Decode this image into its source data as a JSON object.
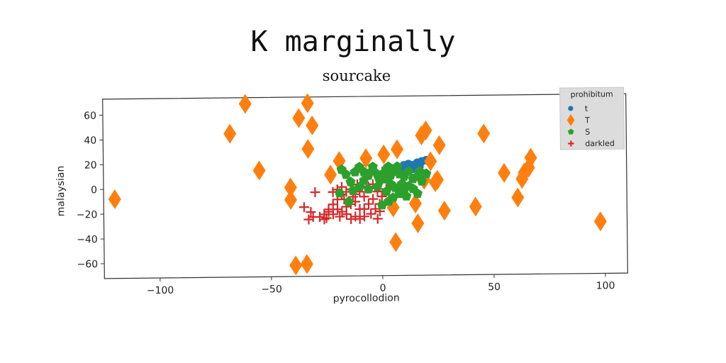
{
  "chart_data": {
    "type": "scatter",
    "title": "K marginally",
    "subtitle": "sourcake",
    "xlabel": "pyrocollodion",
    "ylabel": "malaysian",
    "xlim": [
      -125,
      110
    ],
    "ylim": [
      -72,
      73
    ],
    "xticks": [
      -100,
      -50,
      0,
      50,
      100
    ],
    "yticks": [
      -60,
      -40,
      -20,
      0,
      20,
      40,
      60
    ],
    "grid": false,
    "legend": {
      "title": "prohibitum",
      "position": "top-right"
    },
    "series": [
      {
        "name": "t",
        "marker": "circle",
        "color": "#1f77b4",
        "points": [
          [
            8,
            15
          ],
          [
            10,
            17
          ],
          [
            12,
            18
          ],
          [
            14,
            17
          ],
          [
            16,
            19
          ],
          [
            18,
            20
          ],
          [
            20,
            21
          ],
          [
            11,
            13
          ],
          [
            14,
            14
          ],
          [
            17,
            16
          ],
          [
            6,
            14
          ],
          [
            9,
            11
          ]
        ]
      },
      {
        "name": "T",
        "marker": "diamond",
        "color": "#ff7f0e",
        "points": [
          [
            -120,
            -8
          ],
          [
            -68,
            44
          ],
          [
            -61,
            68
          ],
          [
            -55,
            14
          ],
          [
            -37,
            56
          ],
          [
            -33,
            68
          ],
          [
            -31,
            50
          ],
          [
            -33,
            31
          ],
          [
            -41,
            0
          ],
          [
            -41,
            -10
          ],
          [
            -39,
            -63
          ],
          [
            -34,
            -62
          ],
          [
            -23,
            10
          ],
          [
            -19,
            21
          ],
          [
            -7,
            23
          ],
          [
            1,
            26
          ],
          [
            7,
            30
          ],
          [
            18,
            41
          ],
          [
            20,
            45
          ],
          [
            22,
            20
          ],
          [
            26,
            33
          ],
          [
            25,
            5
          ],
          [
            24,
            3
          ],
          [
            28,
            -20
          ],
          [
            16,
            -30
          ],
          [
            6,
            -45
          ],
          [
            5,
            -17
          ],
          [
            15,
            -14
          ],
          [
            19,
            5
          ],
          [
            42,
            -17
          ],
          [
            46,
            42
          ],
          [
            55,
            10
          ],
          [
            61,
            -10
          ],
          [
            63,
            5
          ],
          [
            64,
            10
          ],
          [
            66,
            14
          ],
          [
            67,
            22
          ],
          [
            98,
            -30
          ]
        ]
      },
      {
        "name": "S",
        "marker": "pentagon",
        "color": "#2ca02c",
        "points": [
          [
            -18,
            14
          ],
          [
            -16,
            10
          ],
          [
            -12,
            12
          ],
          [
            -10,
            16
          ],
          [
            -8,
            12
          ],
          [
            -6,
            9
          ],
          [
            -4,
            13
          ],
          [
            -2,
            10
          ],
          [
            0,
            8
          ],
          [
            2,
            6
          ],
          [
            4,
            9
          ],
          [
            6,
            12
          ],
          [
            8,
            10
          ],
          [
            10,
            8
          ],
          [
            12,
            12
          ],
          [
            14,
            6
          ],
          [
            16,
            8
          ],
          [
            18,
            4
          ],
          [
            20,
            10
          ],
          [
            -14,
            4
          ],
          [
            -10,
            0
          ],
          [
            -6,
            -2
          ],
          [
            -2,
            0
          ],
          [
            2,
            -4
          ],
          [
            4,
            2
          ],
          [
            6,
            -1
          ],
          [
            8,
            -6
          ],
          [
            10,
            -3
          ],
          [
            12,
            0
          ],
          [
            14,
            -2
          ],
          [
            16,
            -6
          ],
          [
            2,
            14
          ],
          [
            -4,
            16
          ],
          [
            -1,
            5
          ],
          [
            5,
            -9
          ],
          [
            9,
            2
          ],
          [
            17,
            12
          ],
          [
            1,
            11
          ],
          [
            3,
            16
          ],
          [
            -8,
            5
          ],
          [
            7,
            16
          ],
          [
            11,
            -8
          ],
          [
            -19,
            -5
          ],
          [
            -13,
            -3
          ],
          [
            0,
            -15
          ],
          [
            3,
            -12
          ],
          [
            -15,
            -12
          ]
        ]
      },
      {
        "name": "darkled",
        "marker": "plus",
        "color": "#d62728",
        "points": [
          [
            -32,
            -20
          ],
          [
            -35,
            -16
          ],
          [
            -33,
            -26
          ],
          [
            -31,
            -24
          ],
          [
            -28,
            -24
          ],
          [
            -26,
            -26
          ],
          [
            -24,
            -20
          ],
          [
            -22,
            -14
          ],
          [
            -20,
            -10
          ],
          [
            -18,
            -6
          ],
          [
            -22,
            -4
          ],
          [
            -20,
            -2
          ],
          [
            -18,
            0
          ],
          [
            -16,
            -4
          ],
          [
            -14,
            -2
          ],
          [
            -12,
            -6
          ],
          [
            -10,
            -4
          ],
          [
            -8,
            -8
          ],
          [
            -6,
            0
          ],
          [
            -4,
            2
          ],
          [
            -2,
            -4
          ],
          [
            0,
            -8
          ],
          [
            -1,
            -14
          ],
          [
            -3,
            -18
          ],
          [
            -5,
            -22
          ],
          [
            -8,
            -24
          ],
          [
            -10,
            -26
          ],
          [
            -12,
            -24
          ],
          [
            -14,
            -26
          ],
          [
            -16,
            -22
          ],
          [
            -18,
            -20
          ],
          [
            -20,
            -18
          ],
          [
            -22,
            -22
          ],
          [
            -24,
            -18
          ],
          [
            -26,
            -22
          ],
          [
            -16,
            -16
          ],
          [
            -12,
            -12
          ],
          [
            -8,
            -18
          ],
          [
            -4,
            -10
          ],
          [
            -2,
            -26
          ],
          [
            -6,
            -14
          ],
          [
            -10,
            -18
          ],
          [
            -14,
            -14
          ],
          [
            2,
            -2
          ],
          [
            -30,
            -4
          ],
          [
            -11,
            2
          ],
          [
            -7,
            -1
          ],
          [
            -17,
            -10
          ],
          [
            -25,
            -25
          ],
          [
            -1,
            -20
          ],
          [
            -13,
            -8
          ],
          [
            -19,
            -24
          ]
        ]
      }
    ]
  }
}
